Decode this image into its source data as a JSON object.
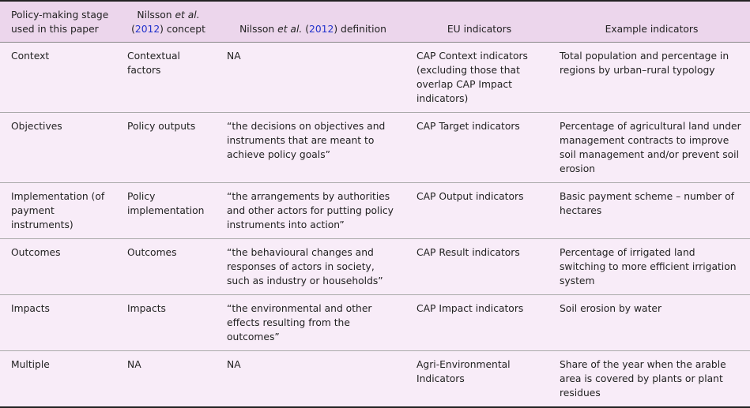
{
  "header": {
    "col1": "Policy-making stage used in this paper",
    "col2_a": "Nilsson ",
    "col2_i": "et al.",
    "col2_b": " (",
    "col2_ref": "2012",
    "col2_c": ") concept",
    "col3_a": "Nilsson ",
    "col3_i": "et al.",
    "col3_b": " (",
    "col3_ref": "2012",
    "col3_c": ") definition",
    "col4": "EU indicators",
    "col5": "Example indicators"
  },
  "rows": [
    {
      "stage": "Context",
      "concept": "Contextual factors",
      "definition": "NA",
      "eu": "CAP Context indicators (excluding those that overlap CAP Impact indicators)",
      "example": "Total population and percentage in regions by urban–rural typology"
    },
    {
      "stage": "Objectives",
      "concept": "Policy outputs",
      "definition": "“the decisions on objectives and instruments that are meant to achieve policy goals”",
      "eu": "CAP Target indicators",
      "example": "Percentage of agricultural land under management contracts to improve soil management and/or prevent soil erosion"
    },
    {
      "stage": "Implementation (of payment instruments)",
      "concept": "Policy implementation",
      "definition": "“the arrangements by authorities and other actors for putting policy instruments into action”",
      "eu": "CAP Output indicators",
      "example": "Basic payment scheme – number of hectares"
    },
    {
      "stage": "Outcomes",
      "concept": "Outcomes",
      "definition": "“the behavioural changes and responses of actors in society, such as industry or households”",
      "eu": "CAP Result indicators",
      "example": "Percentage of irrigated land switching to more efficient irrigation system"
    },
    {
      "stage": "Impacts",
      "concept": "Impacts",
      "definition": "“the environmental and other effects resulting from the outcomes”",
      "eu": "CAP Impact indicators",
      "example": "Soil erosion by water"
    },
    {
      "stage": "Multiple",
      "concept": "NA",
      "definition": "NA",
      "eu": "Agri-Environmental Indicators",
      "example": "Share of the year when the arable area is covered by plants or plant residues"
    }
  ]
}
